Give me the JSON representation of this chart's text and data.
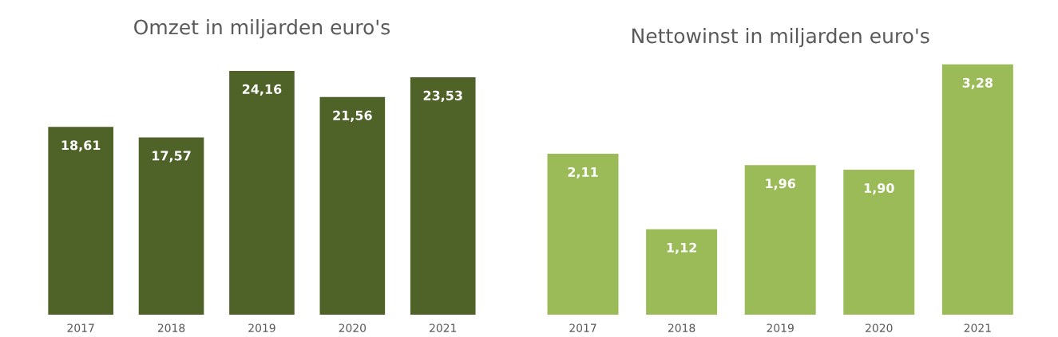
{
  "chart_data": [
    {
      "type": "bar",
      "title": "Omzet in miljarden euro's",
      "categories": [
        "2017",
        "2018",
        "2019",
        "2020",
        "2021"
      ],
      "values": [
        18.61,
        17.57,
        24.16,
        21.56,
        23.53
      ],
      "color": "#4f6228",
      "value_labels": [
        "18,61",
        "17,57",
        "24,16",
        "21,56",
        "23,53"
      ]
    },
    {
      "type": "bar",
      "title": "Nettowinst in miljarden euro's",
      "categories": [
        "2017",
        "2018",
        "2019",
        "2020",
        "2021"
      ],
      "values": [
        2.11,
        1.12,
        1.96,
        1.9,
        3.28
      ],
      "color": "#9bbb59",
      "value_labels": [
        "2,11",
        "1,12",
        "1,96",
        "1,90",
        "3,28"
      ]
    }
  ]
}
